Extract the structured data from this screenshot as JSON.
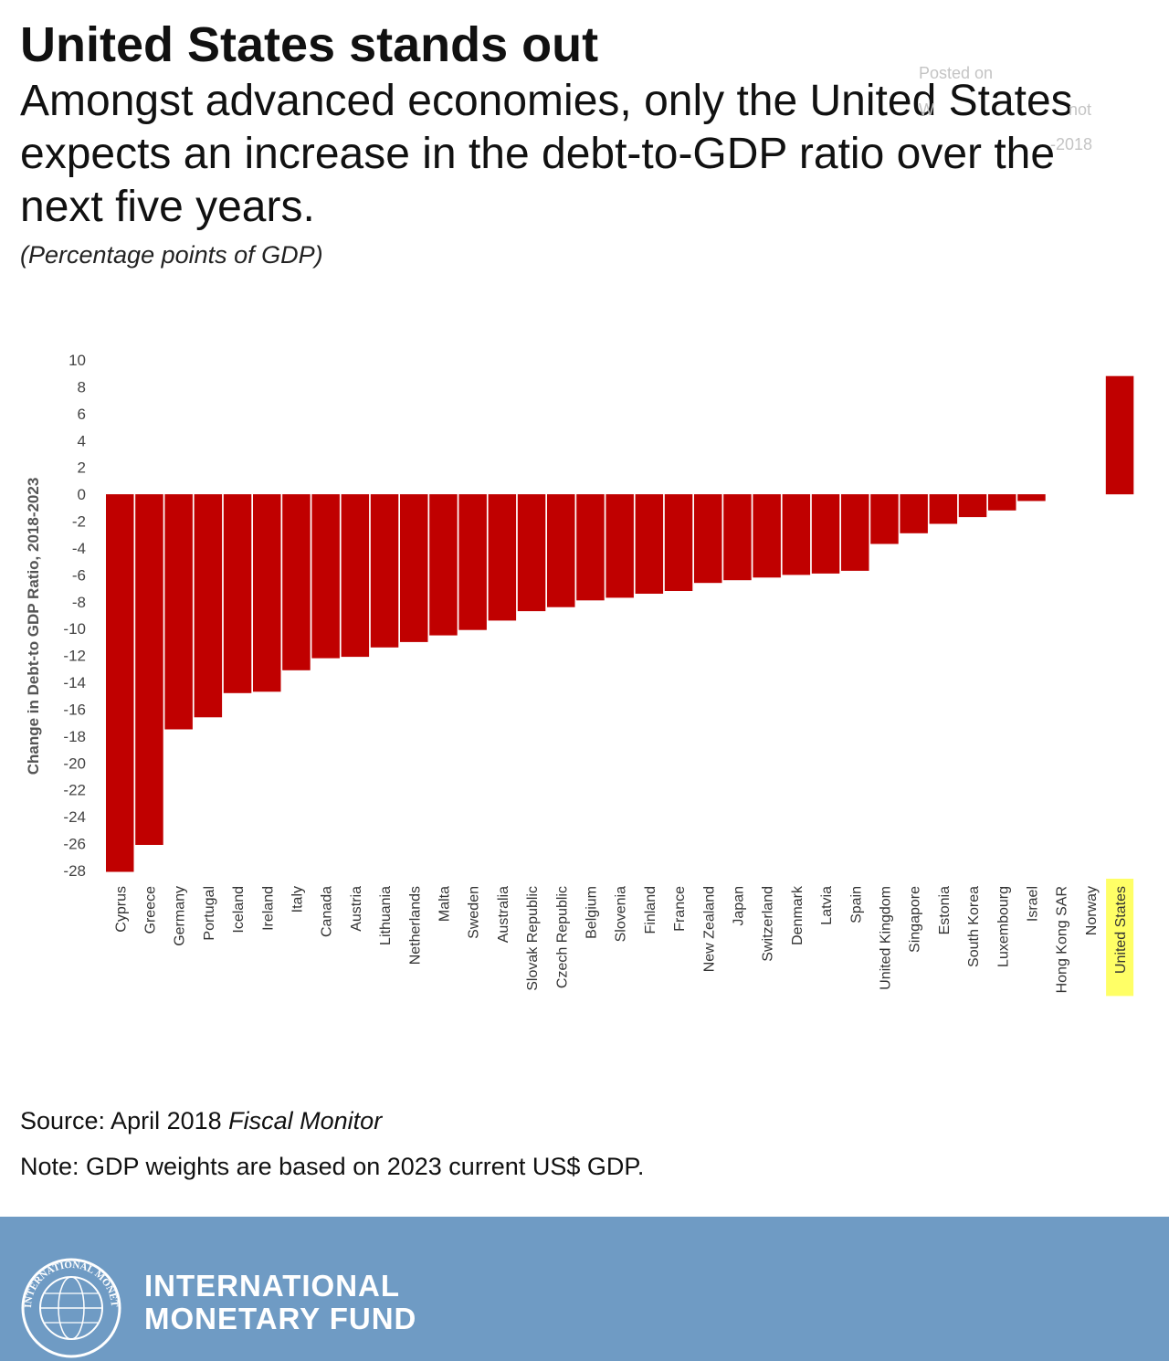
{
  "header": {
    "title": "United States stands out",
    "subtitle": "Amongst advanced economies, only the United States expects an increase in the debt-to-GDP ratio over the next five years.",
    "unit_note": "(Percentage points of GDP)"
  },
  "watermark": {
    "line1": "Posted on",
    "line2": "W",
    "line3": "not",
    "line4": "-2018"
  },
  "chart_data": {
    "type": "bar",
    "ylabel": "Change in Debt-to GDP Ratio,  2018-2023",
    "ylim": [
      -28,
      10
    ],
    "yticks": [
      10,
      8,
      6,
      4,
      2,
      0,
      -2,
      -4,
      -6,
      -8,
      -10,
      -12,
      -14,
      -16,
      -18,
      -20,
      -22,
      -24,
      -26,
      -28
    ],
    "bar_color": "#c00000",
    "highlight_color": "#ffff66",
    "highlight_category": "United States",
    "categories": [
      "Cyprus",
      "Greece",
      "Germany",
      "Portugal",
      "Iceland",
      "Ireland",
      "Italy",
      "Canada",
      "Austria",
      "Lithuania",
      "Netherlands",
      "Malta",
      "Sweden",
      "Australia",
      "Slovak Republic",
      "Czech Republic",
      "Belgium",
      "Slovenia",
      "Finland",
      "France",
      "New Zealand",
      "Japan",
      "Switzerland",
      "Denmark",
      "Latvia",
      "Spain",
      "United Kingdom",
      "Singapore",
      "Estonia",
      "South Korea",
      "Luxembourg",
      "Israel",
      "Hong Kong SAR",
      "Norway",
      "United States"
    ],
    "values": [
      -28.1,
      -26.1,
      -17.5,
      -16.6,
      -14.8,
      -14.7,
      -13.1,
      -12.2,
      -12.1,
      -11.4,
      -11.0,
      -10.5,
      -10.1,
      -9.4,
      -8.7,
      -8.4,
      -7.9,
      -7.7,
      -7.4,
      -7.2,
      -6.6,
      -6.4,
      -6.2,
      -6.0,
      -5.9,
      -5.7,
      -3.7,
      -2.9,
      -2.2,
      -1.7,
      -1.2,
      -0.5,
      0.0,
      0.0,
      8.8
    ]
  },
  "footer": {
    "source_prefix": "Source: April 2018 ",
    "source_italic": "Fiscal Monitor",
    "note": "Note: GDP weights are based on 2023 current US$ GDP.",
    "org_line1": "INTERNATIONAL",
    "org_line2": "MONETARY FUND",
    "seal_text": "INTERNATIONAL MONETARY FUND"
  },
  "colors": {
    "footer_bg": "#6f9bc4",
    "bar": "#c00000"
  }
}
